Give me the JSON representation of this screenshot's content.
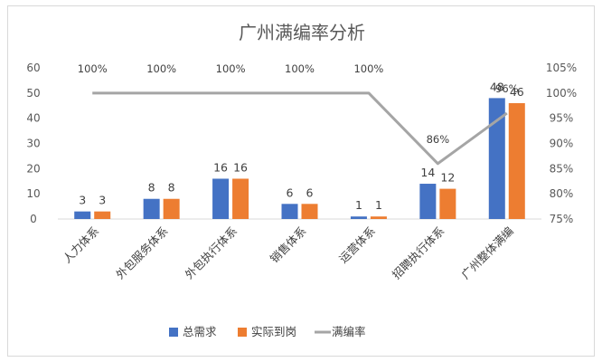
{
  "chart_data": {
    "type": "bar",
    "title": "广州满编率分析",
    "categories": [
      "人力体系",
      "外包服务体系",
      "外包执行体系",
      "销售体系",
      "运营体系",
      "招聘执行体系",
      "广州整体满编"
    ],
    "series": [
      {
        "name": "总需求",
        "type": "bar",
        "axis": "left",
        "color": "#4472C4",
        "values": [
          3,
          8,
          16,
          6,
          1,
          14,
          48
        ]
      },
      {
        "name": "实际到岗",
        "type": "bar",
        "axis": "left",
        "color": "#ED7D31",
        "values": [
          3,
          8,
          16,
          6,
          1,
          12,
          46
        ]
      },
      {
        "name": "满编率",
        "type": "line",
        "axis": "right",
        "color": "#A5A5A5",
        "values": [
          1.0,
          1.0,
          1.0,
          1.0,
          1.0,
          0.86,
          0.96
        ],
        "labels": [
          "100%",
          "100%",
          "100%",
          "100%",
          "100%",
          "86%",
          "96%"
        ]
      }
    ],
    "y_left": {
      "min": 0,
      "max": 60,
      "ticks": [
        "0",
        "10",
        "20",
        "30",
        "40",
        "50",
        "60"
      ]
    },
    "y_right": {
      "min": 0.75,
      "max": 1.05,
      "ticks": [
        "75%",
        "80%",
        "85%",
        "90%",
        "95%",
        "100%",
        "105%"
      ]
    },
    "grid": false,
    "legend_position": "bottom"
  }
}
